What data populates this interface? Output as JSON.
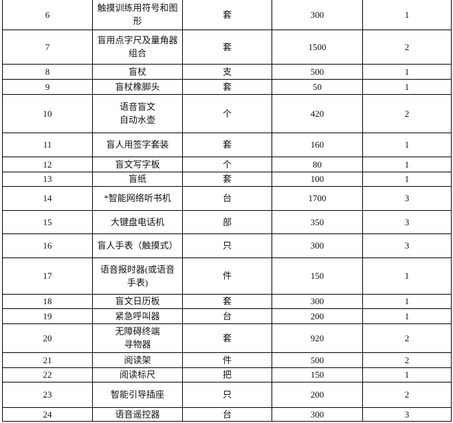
{
  "rows": [
    {
      "no": "6",
      "name": "触摸训练用符号和图形",
      "unit": "套",
      "price": "300",
      "qty": "1"
    },
    {
      "no": "7",
      "name": "盲用点字尺及量角器组合",
      "unit": "套",
      "price": "1500",
      "qty": "2"
    },
    {
      "no": "8",
      "name": "盲杖",
      "unit": "支",
      "price": "500",
      "qty": "1"
    },
    {
      "no": "9",
      "name": "盲杖橡脚头",
      "unit": "套",
      "price": "50",
      "qty": "1"
    },
    {
      "no": "10",
      "name": "语音盲文\n自动水壶",
      "unit": "个",
      "price": "420",
      "qty": "2"
    },
    {
      "no": "11",
      "name": "盲人用签字套装",
      "unit": "套",
      "price": "160",
      "qty": "1"
    },
    {
      "no": "12",
      "name": "盲文写字板",
      "unit": "个",
      "price": "80",
      "qty": "1"
    },
    {
      "no": "13",
      "name": "盲纸",
      "unit": "套",
      "price": "100",
      "qty": "1"
    },
    {
      "no": "14",
      "name": "*智能网络听书机",
      "unit": "台",
      "price": "1700",
      "qty": "3"
    },
    {
      "no": "15",
      "name": "大键盘电话机",
      "unit": "部",
      "price": "350",
      "qty": "3"
    },
    {
      "no": "16",
      "name": "盲人手表（触摸式）",
      "unit": "只",
      "price": "300",
      "qty": "3"
    },
    {
      "no": "17",
      "name": "语音报时器(或语音手表)",
      "unit": "件",
      "price": "150",
      "qty": "1"
    },
    {
      "no": "18",
      "name": "盲文日历板",
      "unit": "套",
      "price": "300",
      "qty": "1"
    },
    {
      "no": "19",
      "name": "紧急呼叫器",
      "unit": "台",
      "price": "200",
      "qty": "1"
    },
    {
      "no": "20",
      "name": "无障碍终端\n寻物器",
      "unit": "套",
      "price": "920",
      "qty": "2"
    },
    {
      "no": "21",
      "name": "阅读架",
      "unit": "件",
      "price": "500",
      "qty": "2"
    },
    {
      "no": "22",
      "name": "阅读标尺",
      "unit": "把",
      "price": "150",
      "qty": "1"
    },
    {
      "no": "23",
      "name": "智能引导插座",
      "unit": "只",
      "price": "200",
      "qty": "2"
    },
    {
      "no": "24",
      "name": "语音遥控器",
      "unit": "台",
      "price": "300",
      "qty": "3"
    }
  ]
}
